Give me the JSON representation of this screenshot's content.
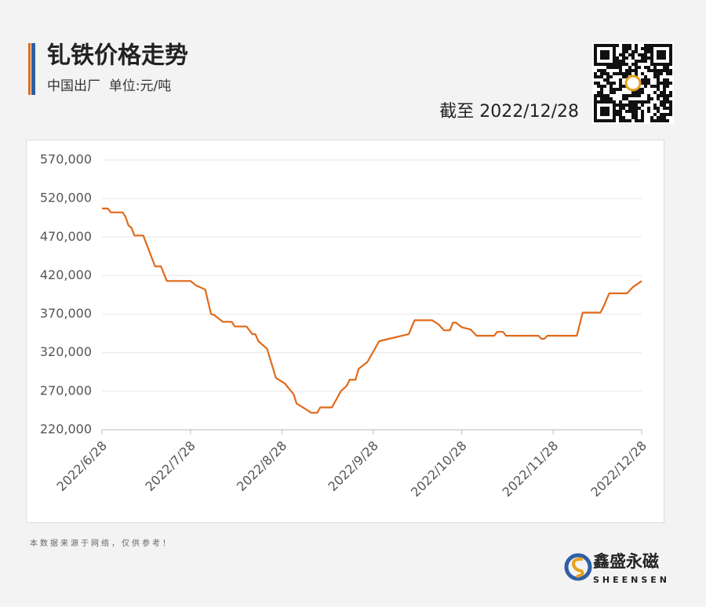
{
  "header": {
    "title": "钆铁价格走势",
    "subtitle": "中国出厂  单位:元/吨",
    "as_of": "截至 2022/12/28"
  },
  "chart_data": {
    "type": "line",
    "x": [
      "2022/6/28",
      "2022/6/30",
      "2022/7/1",
      "2022/7/5",
      "2022/7/6",
      "2022/7/7",
      "2022/7/8",
      "2022/7/9",
      "2022/7/12",
      "2022/7/16",
      "2022/7/18",
      "2022/7/20",
      "2022/7/28",
      "2022/7/30",
      "2022/8/2",
      "2022/8/4",
      "2022/8/5",
      "2022/8/8",
      "2022/8/11",
      "2022/8/12",
      "2022/8/16",
      "2022/8/18",
      "2022/8/19",
      "2022/8/20",
      "2022/8/23",
      "2022/8/26",
      "2022/8/29",
      "2022/9/1",
      "2022/9/2",
      "2022/9/5",
      "2022/9/7",
      "2022/9/9",
      "2022/9/10",
      "2022/9/14",
      "2022/9/17",
      "2022/9/19",
      "2022/9/20",
      "2022/9/22",
      "2022/9/23",
      "2022/9/26",
      "2022/9/30",
      "2022/10/10",
      "2022/10/12",
      "2022/10/18",
      "2022/10/20",
      "2022/10/22",
      "2022/10/24",
      "2022/10/25",
      "2022/10/26",
      "2022/10/28",
      "2022/10/31",
      "2022/11/2",
      "2022/11/8",
      "2022/11/9",
      "2022/11/11",
      "2022/11/12",
      "2022/11/23",
      "2022/11/24",
      "2022/11/25",
      "2022/11/26",
      "2022/12/6",
      "2022/12/8",
      "2022/12/14",
      "2022/12/15",
      "2022/12/17",
      "2022/12/23",
      "2022/12/25",
      "2022/12/28"
    ],
    "values": [
      507000,
      507000,
      502000,
      502000,
      496000,
      485000,
      482000,
      472000,
      472000,
      432000,
      432000,
      413000,
      413000,
      407000,
      402000,
      370000,
      369000,
      360000,
      360000,
      354000,
      354000,
      344000,
      344000,
      335000,
      325000,
      287000,
      280000,
      266000,
      254000,
      247000,
      242000,
      242000,
      249000,
      249000,
      270000,
      277000,
      285000,
      285000,
      299000,
      308000,
      335000,
      344000,
      362000,
      362000,
      357000,
      349000,
      349000,
      359000,
      359000,
      353000,
      350000,
      342000,
      342000,
      347000,
      347000,
      342000,
      342000,
      338000,
      338000,
      342000,
      342000,
      372000,
      372000,
      379000,
      397000,
      397000,
      405000,
      413000
    ],
    "color": "#e06a1b",
    "xlim": [
      "2022/6/28",
      "2022/12/28"
    ],
    "xticks": [
      "2022/6/28",
      "2022/7/28",
      "2022/8/28",
      "2022/9/28",
      "2022/10/28",
      "2022/11/28",
      "2022/12/28"
    ],
    "ylim": [
      220000,
      570000
    ],
    "yticks": [
      {
        "value": 220000,
        "label": "220,000"
      },
      {
        "value": 270000,
        "label": "270,000"
      },
      {
        "value": 320000,
        "label": "320,000"
      },
      {
        "value": 370000,
        "label": "370,000"
      },
      {
        "value": 420000,
        "label": "420,000"
      },
      {
        "value": 470000,
        "label": "470,000"
      },
      {
        "value": 520000,
        "label": "520,000"
      },
      {
        "value": 570000,
        "label": "570,000"
      }
    ],
    "grid": true
  },
  "footer": {
    "note": "本数据来源于网络，仅供参考！",
    "brand": "鑫盛永磁",
    "brand_en": "SHEENSEN"
  }
}
